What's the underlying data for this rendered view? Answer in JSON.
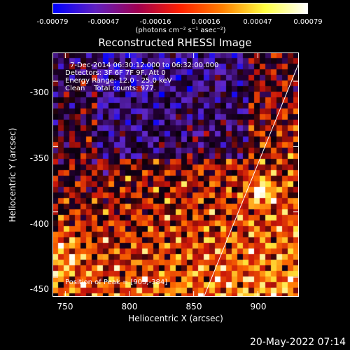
{
  "colorbar": {
    "ticks": [
      "-0.00079",
      "-0.00047",
      "-0.00016",
      "0.00016",
      "0.00047",
      "0.00079"
    ],
    "units": "(photons cm⁻² s⁻¹ asec⁻²)",
    "colors": [
      "#0000ff",
      "#6020c0",
      "#a00050",
      "#ff2000",
      "#ff8000",
      "#ffff40",
      "#ffffff"
    ]
  },
  "chart_data": {
    "type": "heatmap",
    "title": "Reconstructed RHESSI Image",
    "xlabel": "Heliocentric X (arcsec)",
    "ylabel": "Heliocentric Y (arcsec)",
    "xlim": [
      740,
      932
    ],
    "ylim": [
      -465,
      -278
    ],
    "x_ticks": [
      "750",
      "800",
      "850",
      "900"
    ],
    "x_tick_values": [
      750,
      800,
      850,
      900
    ],
    "y_ticks": [
      "-300",
      "-350",
      "-400",
      "-450"
    ],
    "y_tick_values": [
      -300,
      -350,
      -400,
      -450
    ],
    "peak": [
      903,
      -384
    ],
    "limb_line": [
      [
        858,
        -465
      ],
      [
        932,
        -286
      ]
    ]
  },
  "annotations": {
    "line1": "7-Dec-2014 06:30:12.000 to 06:32:00.000",
    "line2": "Detectors: 3F 6F 7F 9F, Att 0",
    "line3": "Energy Range: 12.0 - 25.0 keV",
    "line4": "Clean    Total counts: 977.",
    "peak_text": "Position of Peak = [903,-384]"
  },
  "footer": {
    "date": "20-May-2022 07:14"
  }
}
